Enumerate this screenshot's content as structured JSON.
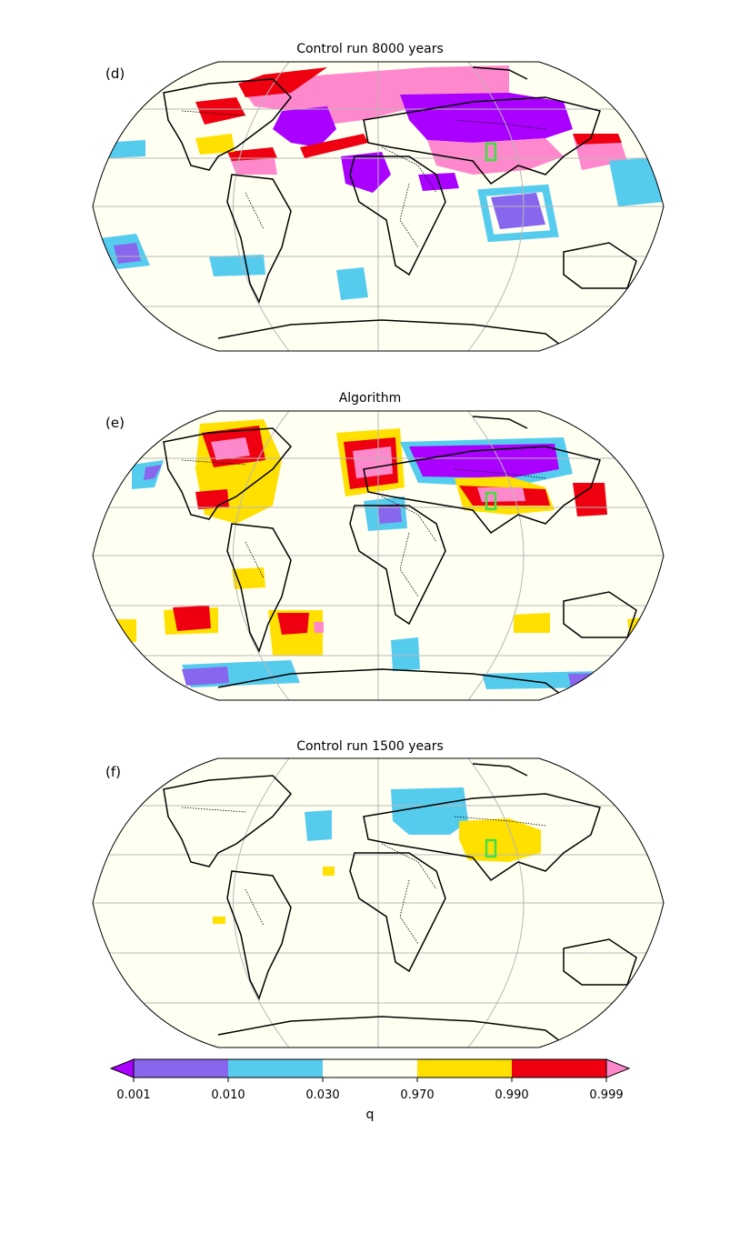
{
  "panels": [
    {
      "label": "(d)",
      "title": "Control run 8000 years"
    },
    {
      "label": "(e)",
      "title": "Algorithm"
    },
    {
      "label": "(f)",
      "title": "Control run 1500 years"
    }
  ],
  "colorbar": {
    "label": "q",
    "ticks": [
      "0.001",
      "0.010",
      "0.030",
      "0.970",
      "0.990",
      "0.999"
    ],
    "colors": {
      "under": "#aa00ff",
      "bin1": "#8866ee",
      "bin2": "#55ccee",
      "bin3": "#fffff2",
      "bin4": "#ffe000",
      "bin5": "#ee0011",
      "over": "#ff88cc"
    }
  },
  "map": {
    "ocean_color": "#fffff2",
    "grid_color": "#b8b8b8",
    "box_color": "#44dd44",
    "projection": "Robinson"
  }
}
